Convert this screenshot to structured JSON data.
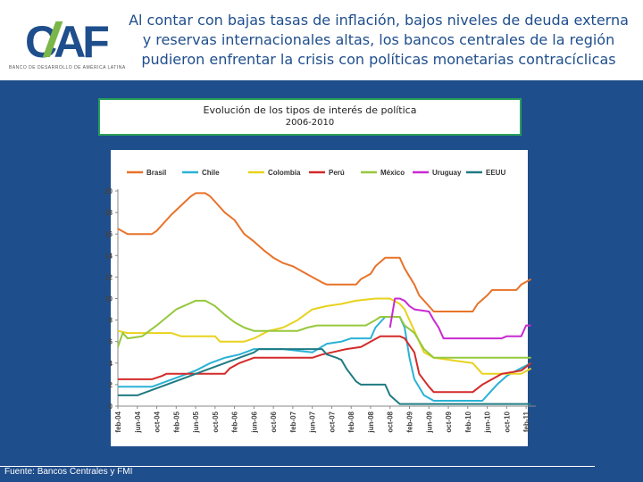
{
  "header": {
    "logo_text": "CAF",
    "logo_tagline": "BANCO DE DESARROLLO DE AMÉRICA LATINA",
    "headline": "Al contar con bajas tasas de inflación, bajos niveles de deuda externa y reservas internacionales altas, los bancos centrales de la región pudieron enfrentar la crisis con políticas monetarias contracíclicas"
  },
  "colors": {
    "background": "#1f4e8c",
    "title_border": "#2aa05a",
    "logo_blue": "#1f4e8c",
    "logo_green": "#7ab648"
  },
  "footer": {
    "source": "Fuente: Bancos Centrales y FMI"
  },
  "chart_data": {
    "type": "line",
    "title": "Evolución de los tipos de interés de política",
    "subtitle": "2006-2010",
    "xlabel": "",
    "ylabel": "",
    "ylim": [
      0,
      20
    ],
    "yticks": [
      0,
      2,
      4,
      6,
      8,
      10,
      12,
      14,
      16,
      18,
      20
    ],
    "xlim": [
      "2004-02",
      "2011-04"
    ],
    "xticks": [
      "feb-04",
      "jun-04",
      "oct-04",
      "feb-05",
      "jun-05",
      "oct-05",
      "feb-06",
      "jun-06",
      "oct-06",
      "feb-07",
      "jun-07",
      "oct-07",
      "feb-08",
      "jun-08",
      "oct-08",
      "feb-09",
      "jun-09",
      "oct-09",
      "feb-10",
      "jun-10",
      "oct-10",
      "feb-11"
    ],
    "grid": false,
    "legend": "top",
    "series": [
      {
        "name": "Brasil",
        "color": "#e8732a",
        "points": [
          [
            "2004-02",
            16.5
          ],
          [
            "2004-04",
            16
          ],
          [
            "2004-09",
            16
          ],
          [
            "2004-10",
            16.3
          ],
          [
            "2005-01",
            17.8
          ],
          [
            "2005-05",
            19.5
          ],
          [
            "2005-06",
            19.8
          ],
          [
            "2005-08",
            19.8
          ],
          [
            "2005-09",
            19.5
          ],
          [
            "2005-12",
            18
          ],
          [
            "2006-02",
            17.3
          ],
          [
            "2006-04",
            16
          ],
          [
            "2006-06",
            15.3
          ],
          [
            "2006-08",
            14.5
          ],
          [
            "2006-10",
            13.8
          ],
          [
            "2006-12",
            13.3
          ],
          [
            "2007-02",
            13
          ],
          [
            "2007-04",
            12.5
          ],
          [
            "2007-06",
            12
          ],
          [
            "2007-08",
            11.5
          ],
          [
            "2007-09",
            11.3
          ],
          [
            "2008-03",
            11.3
          ],
          [
            "2008-04",
            11.8
          ],
          [
            "2008-06",
            12.3
          ],
          [
            "2008-07",
            13
          ],
          [
            "2008-09",
            13.8
          ],
          [
            "2008-12",
            13.8
          ],
          [
            "2009-01",
            12.8
          ],
          [
            "2009-03",
            11.3
          ],
          [
            "2009-04",
            10.3
          ],
          [
            "2009-06",
            9.3
          ],
          [
            "2009-07",
            8.8
          ],
          [
            "2010-03",
            8.8
          ],
          [
            "2010-04",
            9.5
          ],
          [
            "2010-06",
            10.3
          ],
          [
            "2010-07",
            10.8
          ],
          [
            "2010-12",
            10.8
          ],
          [
            "2011-01",
            11.3
          ],
          [
            "2011-03",
            11.8
          ]
        ]
      },
      {
        "name": "Chile",
        "color": "#2ab2d6",
        "points": [
          [
            "2004-02",
            1.8
          ],
          [
            "2004-09",
            1.8
          ],
          [
            "2004-12",
            2.3
          ],
          [
            "2005-03",
            2.8
          ],
          [
            "2005-06",
            3.3
          ],
          [
            "2005-09",
            4
          ],
          [
            "2005-12",
            4.5
          ],
          [
            "2006-03",
            4.8
          ],
          [
            "2006-06",
            5.3
          ],
          [
            "2006-12",
            5.3
          ],
          [
            "2007-06",
            5
          ],
          [
            "2007-09",
            5.8
          ],
          [
            "2007-12",
            6
          ],
          [
            "2008-02",
            6.3
          ],
          [
            "2008-06",
            6.3
          ],
          [
            "2008-07",
            7.3
          ],
          [
            "2008-09",
            8.3
          ],
          [
            "2008-12",
            8.3
          ],
          [
            "2009-01",
            7.3
          ],
          [
            "2009-02",
            4.5
          ],
          [
            "2009-03",
            2.5
          ],
          [
            "2009-05",
            1
          ],
          [
            "2009-07",
            0.5
          ],
          [
            "2010-05",
            0.5
          ],
          [
            "2010-06",
            1
          ],
          [
            "2010-08",
            2
          ],
          [
            "2010-10",
            2.8
          ],
          [
            "2010-12",
            3.3
          ],
          [
            "2011-03",
            4
          ]
        ]
      },
      {
        "name": "Colombia",
        "color": "#e8d21e",
        "points": [
          [
            "2004-02",
            7
          ],
          [
            "2004-04",
            6.8
          ],
          [
            "2005-01",
            6.8
          ],
          [
            "2005-03",
            6.5
          ],
          [
            "2005-10",
            6.5
          ],
          [
            "2005-11",
            6
          ],
          [
            "2006-04",
            6
          ],
          [
            "2006-06",
            6.3
          ],
          [
            "2006-09",
            7
          ],
          [
            "2006-12",
            7.3
          ],
          [
            "2007-03",
            8
          ],
          [
            "2007-06",
            9
          ],
          [
            "2007-09",
            9.3
          ],
          [
            "2007-12",
            9.5
          ],
          [
            "2008-03",
            9.8
          ],
          [
            "2008-07",
            10
          ],
          [
            "2008-10",
            10
          ],
          [
            "2008-12",
            9.5
          ],
          [
            "2009-01",
            9
          ],
          [
            "2009-03",
            7
          ],
          [
            "2009-05",
            5
          ],
          [
            "2009-07",
            4.5
          ],
          [
            "2010-03",
            4
          ],
          [
            "2010-04",
            3.5
          ],
          [
            "2010-05",
            3
          ],
          [
            "2011-01",
            3
          ],
          [
            "2011-03",
            3.5
          ]
        ]
      },
      {
        "name": "Perú",
        "color": "#d42a2a",
        "points": [
          [
            "2004-02",
            2.5
          ],
          [
            "2004-09",
            2.5
          ],
          [
            "2004-11",
            2.8
          ],
          [
            "2004-12",
            3
          ],
          [
            "2005-12",
            3
          ],
          [
            "2006-01",
            3.5
          ],
          [
            "2006-03",
            4
          ],
          [
            "2006-06",
            4.5
          ],
          [
            "2007-06",
            4.5
          ],
          [
            "2007-08",
            4.8
          ],
          [
            "2007-10",
            5
          ],
          [
            "2008-01",
            5.3
          ],
          [
            "2008-04",
            5.5
          ],
          [
            "2008-06",
            6
          ],
          [
            "2008-08",
            6.5
          ],
          [
            "2008-12",
            6.5
          ],
          [
            "2009-01",
            6.3
          ],
          [
            "2009-03",
            5
          ],
          [
            "2009-04",
            3
          ],
          [
            "2009-06",
            1.8
          ],
          [
            "2009-07",
            1.3
          ],
          [
            "2010-03",
            1.3
          ],
          [
            "2010-05",
            2
          ],
          [
            "2010-07",
            2.5
          ],
          [
            "2010-09",
            3
          ],
          [
            "2011-01",
            3.3
          ],
          [
            "2011-03",
            4
          ]
        ]
      },
      {
        "name": "México",
        "color": "#96c83c",
        "points": [
          [
            "2004-02",
            5.5
          ],
          [
            "2004-03",
            6.8
          ],
          [
            "2004-04",
            6.3
          ],
          [
            "2004-07",
            6.5
          ],
          [
            "2004-10",
            7.5
          ],
          [
            "2005-02",
            9
          ],
          [
            "2005-06",
            9.8
          ],
          [
            "2005-08",
            9.8
          ],
          [
            "2005-10",
            9.3
          ],
          [
            "2005-12",
            8.5
          ],
          [
            "2006-02",
            7.8
          ],
          [
            "2006-04",
            7.3
          ],
          [
            "2006-06",
            7
          ],
          [
            "2007-03",
            7
          ],
          [
            "2007-05",
            7.3
          ],
          [
            "2007-07",
            7.5
          ],
          [
            "2008-05",
            7.5
          ],
          [
            "2008-07",
            8
          ],
          [
            "2008-08",
            8.3
          ],
          [
            "2008-12",
            8.3
          ],
          [
            "2009-01",
            7.5
          ],
          [
            "2009-03",
            6.8
          ],
          [
            "2009-05",
            5.3
          ],
          [
            "2009-07",
            4.5
          ],
          [
            "2011-03",
            4.5
          ]
        ]
      },
      {
        "name": "Uruguay",
        "color": "#c82ad2",
        "points": [
          [
            "2008-10",
            7.3
          ],
          [
            "2008-11",
            10
          ],
          [
            "2008-12",
            10
          ],
          [
            "2009-01",
            9.8
          ],
          [
            "2009-02",
            9.3
          ],
          [
            "2009-03",
            9
          ],
          [
            "2009-06",
            8.8
          ],
          [
            "2009-07",
            8
          ],
          [
            "2009-08",
            7.3
          ],
          [
            "2009-09",
            6.3
          ],
          [
            "2010-09",
            6.3
          ],
          [
            "2010-10",
            6.5
          ],
          [
            "2011-01",
            6.5
          ],
          [
            "2011-02",
            7.5
          ],
          [
            "2011-03",
            7.5
          ]
        ]
      },
      {
        "name": "EEUU",
        "color": "#1f7a82",
        "points": [
          [
            "2004-02",
            1
          ],
          [
            "2004-06",
            1
          ],
          [
            "2004-09",
            1.5
          ],
          [
            "2004-12",
            2
          ],
          [
            "2005-03",
            2.5
          ],
          [
            "2005-06",
            3
          ],
          [
            "2005-09",
            3.5
          ],
          [
            "2005-12",
            4
          ],
          [
            "2006-03",
            4.5
          ],
          [
            "2006-06",
            5
          ],
          [
            "2006-07",
            5.3
          ],
          [
            "2007-08",
            5.3
          ],
          [
            "2007-09",
            4.8
          ],
          [
            "2007-11",
            4.5
          ],
          [
            "2007-12",
            4.3
          ],
          [
            "2008-01",
            3.5
          ],
          [
            "2008-03",
            2.3
          ],
          [
            "2008-04",
            2
          ],
          [
            "2008-09",
            2
          ],
          [
            "2008-10",
            1
          ],
          [
            "2008-12",
            0.2
          ],
          [
            "2011-03",
            0.2
          ]
        ]
      }
    ]
  }
}
